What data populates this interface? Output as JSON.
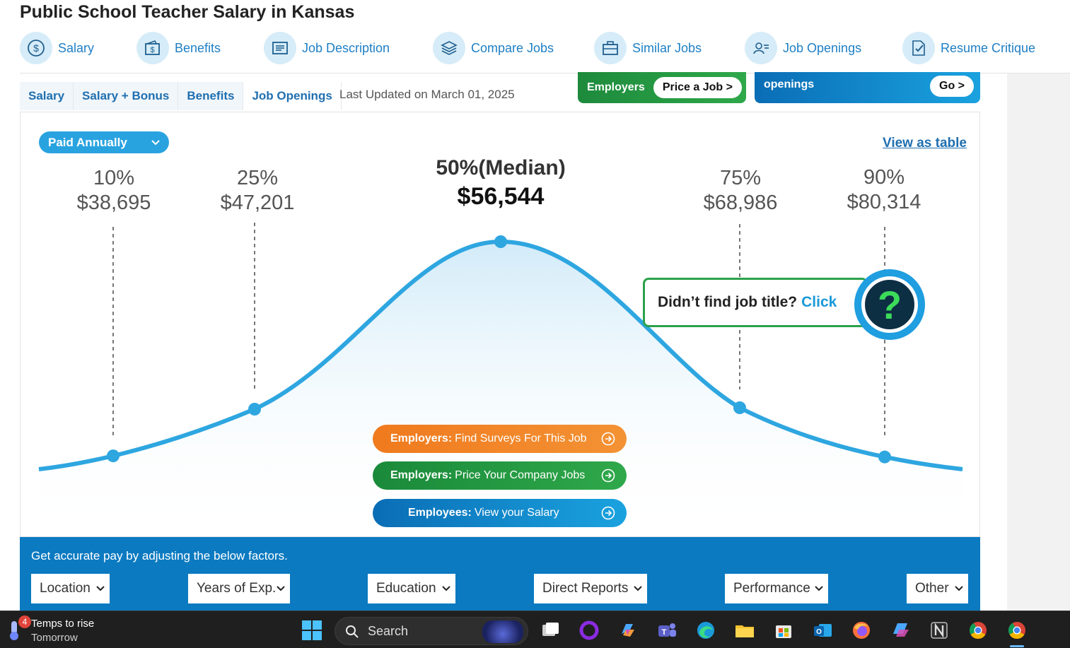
{
  "title": {
    "job": "Public School Teacher",
    "mid": " Salary in ",
    "place": "Kansas"
  },
  "nav": {
    "items": [
      {
        "label": "Salary",
        "icon": "dollar-circle-icon"
      },
      {
        "label": "Benefits",
        "icon": "wallet-icon"
      },
      {
        "label": "Job Description",
        "icon": "document-icon"
      },
      {
        "label": "Compare Jobs",
        "icon": "layers-icon"
      },
      {
        "label": "Similar Jobs",
        "icon": "briefcase-icon"
      },
      {
        "label": "Job Openings",
        "icon": "id-card-icon"
      },
      {
        "label": "Resume Critique",
        "icon": "resume-check-icon"
      }
    ]
  },
  "subtabs": [
    "Salary",
    "Salary + Bonus",
    "Benefits",
    "Job Openings"
  ],
  "updated": "Last Updated on March 01, 2025",
  "banners": {
    "employers_label": "Employers",
    "price_job": "Price a Job >",
    "openings_label": "openings",
    "go": "Go >"
  },
  "chart": {
    "paid_select": "Paid Annually",
    "view_table": "View as table",
    "percentiles": [
      {
        "label": "10%",
        "value": "$38,695"
      },
      {
        "label": "25%",
        "value": "$47,201"
      },
      {
        "label": "50%(Median)",
        "value": "$56,544"
      },
      {
        "label": "75%",
        "value": "$68,986"
      },
      {
        "label": "90%",
        "value": "$80,314"
      }
    ],
    "curve_color": "#2ea6e0"
  },
  "chart_data": {
    "type": "line",
    "categories": [
      "10%",
      "25%",
      "50%(Median)",
      "75%",
      "90%"
    ],
    "values": [
      38695,
      47201,
      56544,
      68986,
      80314
    ]
  },
  "ctas": {
    "orange": {
      "bold": "Employers:",
      "text": "Find Surveys For This Job"
    },
    "green": {
      "bold": "Employers:",
      "text": "Price Your Company Jobs"
    },
    "blue": {
      "bold": "Employees:",
      "text": "View your Salary"
    }
  },
  "popup": {
    "text": "Didn’t find job title?",
    "click": "Click",
    "qmark": "?"
  },
  "factors": {
    "hint": "Get accurate pay by adjusting the below factors.",
    "items": [
      "Location",
      "Years of Exp.",
      "Education",
      "Direct Reports",
      "Performance",
      "Other"
    ]
  },
  "taskbar": {
    "weather_badge": "4",
    "weather_line1": "Temps to rise",
    "weather_line2": "Tomorrow",
    "search": "Search"
  }
}
